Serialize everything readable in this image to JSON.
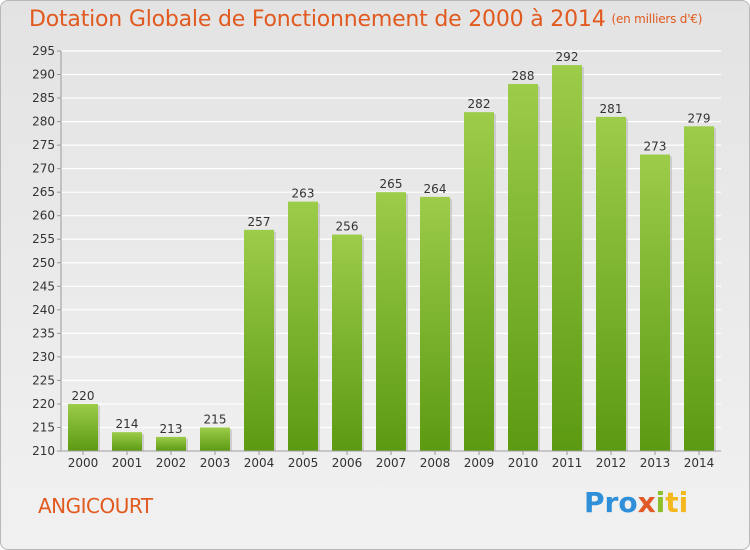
{
  "header": {
    "title": "Dotation Globale de Fonctionnement de 2000 à 2014",
    "unit": "(en milliers d'€)"
  },
  "footer": {
    "commune": "ANGICOURT",
    "logo": [
      "Pro",
      "x",
      "i",
      "ti"
    ]
  },
  "colors": {
    "title": "#e15a1f",
    "bar_light": "#9ccc4a",
    "bar_dark": "#5c9a12",
    "grid": "#ffffff"
  },
  "chart_data": {
    "type": "bar",
    "title": "Dotation Globale de Fonctionnement de 2000 à 2014",
    "subtitle": "(en milliers d'€)",
    "categories": [
      "2000",
      "2001",
      "2002",
      "2003",
      "2004",
      "2005",
      "2006",
      "2007",
      "2008",
      "2009",
      "2010",
      "2011",
      "2012",
      "2013",
      "2014"
    ],
    "values": [
      220,
      214,
      213,
      215,
      257,
      263,
      256,
      265,
      264,
      282,
      288,
      292,
      281,
      273,
      279
    ],
    "ylim": [
      210,
      295
    ],
    "ytick_step": 5,
    "grid": true,
    "legend": "none"
  }
}
